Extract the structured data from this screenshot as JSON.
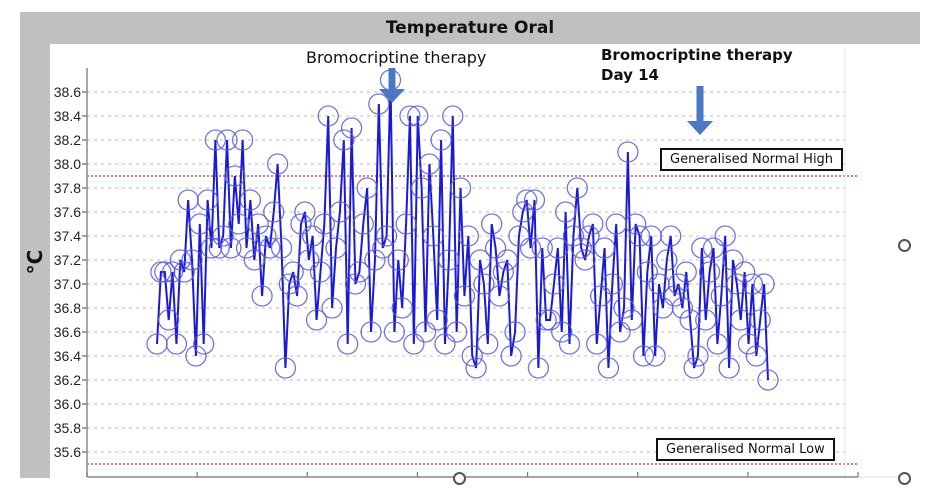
{
  "chart_data": {
    "type": "line",
    "title": "Temperature Oral",
    "xlabel": "",
    "ylabel": "°C",
    "ylim": [
      35.5,
      38.75
    ],
    "yticks": [
      "38.6",
      "38.4",
      "38.2",
      "38.0",
      "37.8",
      "37.6",
      "37.4",
      "37.2",
      "37.0",
      "36.8",
      "36.6",
      "36.4",
      "36.2",
      "36.0",
      "35.8",
      "35.6"
    ],
    "xtick_count": 8,
    "grid": true,
    "marker": "open-circle",
    "series_color": "#1a1ad6",
    "series": [
      {
        "name": "Temperature Oral",
        "values": [
          36.5,
          37.1,
          37.1,
          36.7,
          37.1,
          36.5,
          37.2,
          37.1,
          37.7,
          37.2,
          36.4,
          37.5,
          36.5,
          37.7,
          37.3,
          38.2,
          37.3,
          37.4,
          38.2,
          37.3,
          37.9,
          37.5,
          38.2,
          37.3,
          37.7,
          37.2,
          37.5,
          36.9,
          37.4,
          37.3,
          37.6,
          38.0,
          37.3,
          36.3,
          37.0,
          37.1,
          36.9,
          37.5,
          37.6,
          37.2,
          37.4,
          36.7,
          37.1,
          37.5,
          38.4,
          36.8,
          37.3,
          37.6,
          38.2,
          36.5,
          38.3,
          37.0,
          37.1,
          37.5,
          37.8,
          36.6,
          37.2,
          38.5,
          37.3,
          37.4,
          38.7,
          36.6,
          37.2,
          36.8,
          37.5,
          38.4,
          36.5,
          38.4,
          37.8,
          36.6,
          38.0,
          37.4,
          36.7,
          38.2,
          36.5,
          37.2,
          38.4,
          36.6,
          37.8,
          36.9,
          37.4,
          36.4,
          36.3,
          37.2,
          37.0,
          36.5,
          37.5,
          37.3,
          36.9,
          37.1,
          37.2,
          36.4,
          36.6,
          37.4,
          37.6,
          37.7,
          37.3,
          37.7,
          36.3,
          37.3,
          36.7,
          36.7,
          37.0,
          37.3,
          36.6,
          37.6,
          36.5,
          37.4,
          37.8,
          37.3,
          37.2,
          37.4,
          37.5,
          36.5,
          36.9,
          37.3,
          36.3,
          37.0,
          37.5,
          36.6,
          36.8,
          38.1,
          36.7,
          37.5,
          37.4,
          36.4,
          37.1,
          37.4,
          36.4,
          37.0,
          36.8,
          37.2,
          37.4,
          36.9,
          37.0,
          36.8,
          37.1,
          36.7,
          36.3,
          36.4,
          37.3,
          36.7,
          37.1,
          37.3,
          36.5,
          36.9,
          37.4,
          36.3,
          37.2,
          37.0,
          36.7,
          37.1,
          36.5,
          37.0,
          36.4,
          36.7,
          37.0,
          36.2
        ]
      }
    ],
    "reference_lines": [
      {
        "label": "Generalised Normal High",
        "value": 37.9,
        "color": "#e05050"
      },
      {
        "label": "Generalised Normal Low",
        "value": 35.5,
        "color": "#e05050"
      }
    ],
    "annotations": [
      {
        "text": "Bromocriptine therapy",
        "arrow": true,
        "arrow_color": "#4a78c2"
      },
      {
        "text": "Bromocriptine therapy\nDay 14",
        "line1": "Bromocriptine therapy",
        "line2": "Day 14",
        "arrow": true,
        "arrow_color": "#4a78c2"
      }
    ]
  }
}
